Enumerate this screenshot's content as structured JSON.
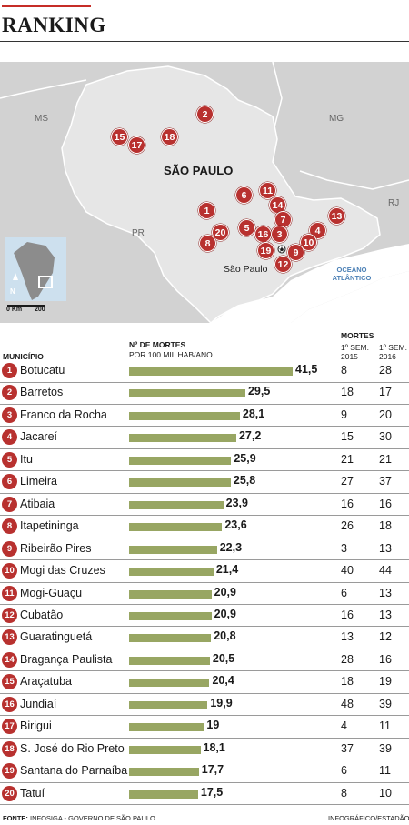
{
  "header": {
    "title": "RANKING"
  },
  "map": {
    "labels": {
      "ms": "MS",
      "mg": "MG",
      "rj": "RJ",
      "pr": "PR",
      "state": "SÃO PAULO",
      "city": "São Paulo",
      "ocean": "OCEANO ATLÂNTICO",
      "scale_zero": "0 Km",
      "scale_end": "200",
      "north": "N"
    },
    "colors": {
      "land": "#e6e6e6",
      "neighbor": "#d2d2d2",
      "ocean": "#ffffff",
      "pin": "#b8312f"
    },
    "pins": [
      "2",
      "15",
      "17",
      "18",
      "1",
      "20",
      "6",
      "11",
      "14",
      "7",
      "13",
      "4",
      "10",
      "9",
      "5",
      "16",
      "3",
      "19",
      "12",
      "8"
    ]
  },
  "table": {
    "col_municipio": "MUNICÍPIO",
    "col_mortes_1": "Nº DE MORTES",
    "col_mortes_2": "POR 100 MIL HAB/ANO",
    "col_deaths": "MORTES",
    "col_2015_1": "1º SEM.",
    "col_2015_2": "2015",
    "col_2016_1": "1º SEM.",
    "col_2016_2": "2016"
  },
  "chart_data": {
    "type": "bar",
    "orientation": "horizontal",
    "categories": [
      "Botucatu",
      "Barretos",
      "Franco da Rocha",
      "Jacareí",
      "Itu",
      "Limeira",
      "Atibaia",
      "Itapetininga",
      "Ribeirão Pires",
      "Mogi das Cruzes",
      "Mogi-Guaçu",
      "Cubatão",
      "Guaratinguetá",
      "Bragança Paulista",
      "Araçatuba",
      "Jundiaí",
      "Birigui",
      "S. José do Rio Preto",
      "Santana do Parnaíba",
      "Tatuí"
    ],
    "ranks": [
      "1",
      "2",
      "3",
      "4",
      "5",
      "6",
      "7",
      "8",
      "9",
      "10",
      "11",
      "12",
      "13",
      "14",
      "15",
      "16",
      "17",
      "18",
      "19",
      "20"
    ],
    "values": [
      41.5,
      29.5,
      28.1,
      27.2,
      25.9,
      25.8,
      23.9,
      23.6,
      22.3,
      21.4,
      20.9,
      20.9,
      20.8,
      20.5,
      20.4,
      19.9,
      19,
      18.1,
      17.7,
      17.5
    ],
    "value_labels": [
      "41,5",
      "29,5",
      "28,1",
      "27,2",
      "25,9",
      "25,8",
      "23,9",
      "23,6",
      "22,3",
      "21,4",
      "20,9",
      "20,9",
      "20,8",
      "20,5",
      "20,4",
      "19,9",
      "19",
      "18,1",
      "17,7",
      "17,5"
    ],
    "deaths_2015": [
      "8",
      "18",
      "9",
      "15",
      "21",
      "27",
      "16",
      "26",
      "3",
      "40",
      "6",
      "16",
      "13",
      "28",
      "18",
      "48",
      "4",
      "37",
      "6",
      "8"
    ],
    "deaths_2016": [
      "28",
      "17",
      "20",
      "30",
      "21",
      "37",
      "16",
      "18",
      "13",
      "44",
      "13",
      "13",
      "12",
      "16",
      "19",
      "39",
      "11",
      "39",
      "11",
      "10"
    ],
    "bar_color": "#98a663"
  },
  "footer": {
    "source_label": "FONTE:",
    "source_text": "INFOSIGA - GOVERNO DE SÃO PAULO",
    "credit": "INFOGRÁFICO/ESTADÃO"
  }
}
